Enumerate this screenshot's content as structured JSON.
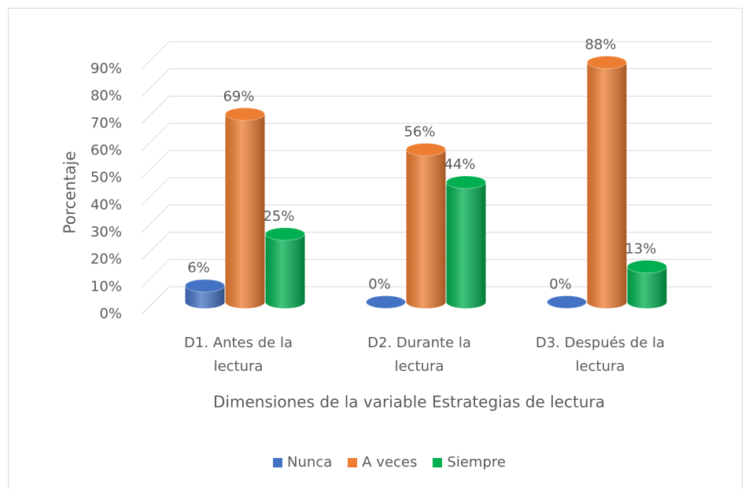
{
  "chart_data": {
    "type": "bar3d",
    "categories": [
      "D1. Antes de la lectura",
      "D2. Durante la lectura",
      "D3. Después de la lectura"
    ],
    "series": [
      {
        "name": "Nunca",
        "color": "#4472c4",
        "values": [
          6,
          0,
          0
        ],
        "value_labels": [
          "6%",
          "0%",
          "0%"
        ]
      },
      {
        "name": "A veces",
        "color": "#ed7d31",
        "values": [
          69,
          56,
          88
        ],
        "value_labels": [
          "69%",
          "56%",
          "88%"
        ]
      },
      {
        "name": "Siempre",
        "color": "#00b050",
        "values": [
          25,
          44,
          13
        ],
        "value_labels": [
          "25%",
          "44%",
          "13%"
        ]
      }
    ],
    "ylabel": "Porcentaje",
    "xlabel": "Dimensiones de la variable Estrategias de lectura",
    "ylim": [
      0,
      90
    ],
    "yticks": [
      {
        "value": 0,
        "label": "0%"
      },
      {
        "value": 10,
        "label": "10%"
      },
      {
        "value": 20,
        "label": "20%"
      },
      {
        "value": 30,
        "label": "30%"
      },
      {
        "value": 40,
        "label": "40%"
      },
      {
        "value": 50,
        "label": "50%"
      },
      {
        "value": 60,
        "label": "60%"
      },
      {
        "value": 70,
        "label": "70%"
      },
      {
        "value": 80,
        "label": "80%"
      },
      {
        "value": 90,
        "label": "90%"
      }
    ],
    "grid": true,
    "legend": "bottom"
  }
}
